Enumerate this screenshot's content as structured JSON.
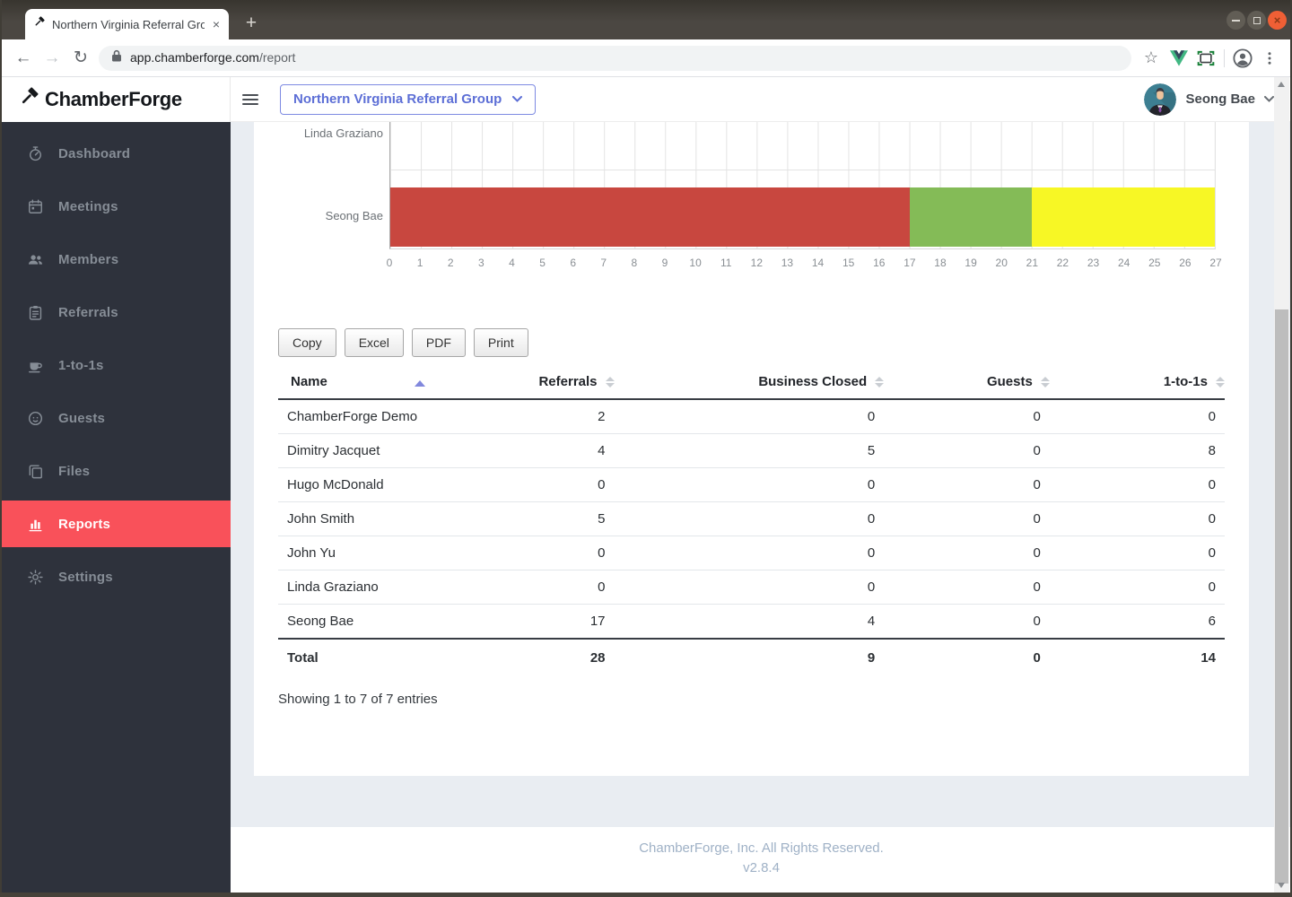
{
  "browser": {
    "tab_title": "Northern Virginia Referral Group",
    "url_host": "app.chamberforge.com",
    "url_path": "/report"
  },
  "header": {
    "logo_text": "ChamberForge",
    "group_selector": "Northern Virginia Referral Group",
    "user_name": "Seong Bae"
  },
  "sidebar": {
    "items": [
      {
        "label": "Dashboard",
        "icon": "dashboard-icon",
        "active": false
      },
      {
        "label": "Meetings",
        "icon": "calendar-icon",
        "active": false
      },
      {
        "label": "Members",
        "icon": "people-icon",
        "active": false
      },
      {
        "label": "Referrals",
        "icon": "clipboard-icon",
        "active": false
      },
      {
        "label": "1-to-1s",
        "icon": "coffee-icon",
        "active": false
      },
      {
        "label": "Guests",
        "icon": "face-icon",
        "active": false
      },
      {
        "label": "Files",
        "icon": "files-icon",
        "active": false
      },
      {
        "label": "Reports",
        "icon": "bar-chart-icon",
        "active": true
      },
      {
        "label": "Settings",
        "icon": "gear-icon",
        "active": false
      }
    ]
  },
  "chart_data": {
    "type": "bar",
    "orientation": "horizontal",
    "stacked": true,
    "grid": true,
    "legend_visible": false,
    "categories": [
      "Linda Graziano",
      "Seong Bae"
    ],
    "series": [
      {
        "name": "Referrals",
        "color": "#c8473f",
        "values": [
          0,
          17
        ]
      },
      {
        "name": "Business Closed",
        "color": "#84bb57",
        "values": [
          0,
          4
        ]
      },
      {
        "name": "1-to-1s",
        "color": "#f7f725",
        "values": [
          0,
          6
        ]
      }
    ],
    "xlim": [
      0,
      27
    ],
    "tick_step": 1
  },
  "toolbar": {
    "buttons": [
      "Copy",
      "Excel",
      "PDF",
      "Print"
    ]
  },
  "table": {
    "columns": [
      "Name",
      "Referrals",
      "Business Closed",
      "Guests",
      "1-to-1s"
    ],
    "rows": [
      {
        "name": "ChamberForge Demo",
        "values": [
          2,
          0,
          0,
          0
        ]
      },
      {
        "name": "Dimitry Jacquet",
        "values": [
          4,
          5,
          0,
          8
        ]
      },
      {
        "name": "Hugo McDonald",
        "values": [
          0,
          0,
          0,
          0
        ]
      },
      {
        "name": "John Smith",
        "values": [
          5,
          0,
          0,
          0
        ]
      },
      {
        "name": "John Yu",
        "values": [
          0,
          0,
          0,
          0
        ]
      },
      {
        "name": "Linda Graziano",
        "values": [
          0,
          0,
          0,
          0
        ]
      },
      {
        "name": "Seong Bae",
        "values": [
          17,
          4,
          0,
          6
        ]
      }
    ],
    "total": {
      "label": "Total",
      "values": [
        28,
        9,
        0,
        14
      ]
    },
    "summary": "Showing 1 to 7 of 7 entries"
  },
  "footer": {
    "copyright": "ChamberForge, Inc. All Rights Reserved.",
    "version": "v2.8.4"
  }
}
